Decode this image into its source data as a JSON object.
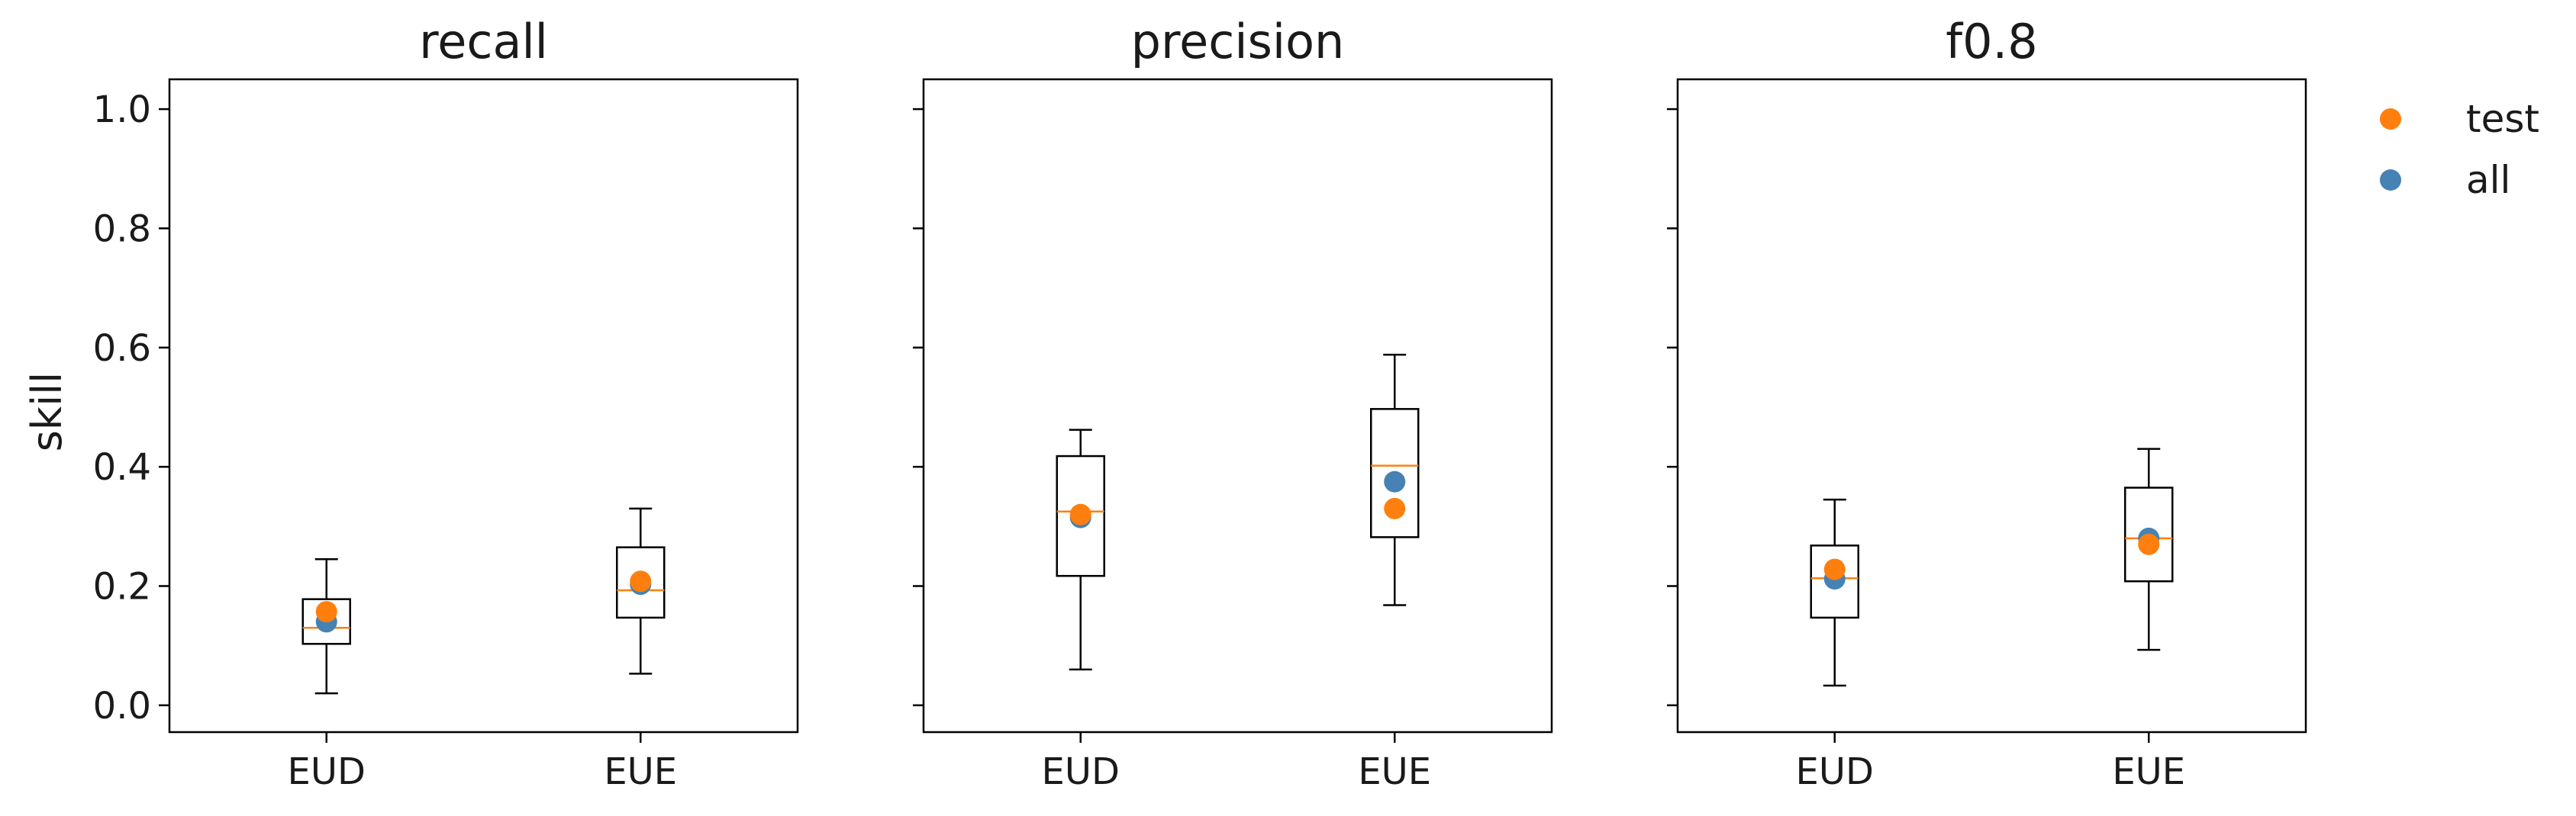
{
  "chart_data": {
    "type": "box",
    "ylabel": "skill",
    "ylim": [
      -0.045,
      1.05
    ],
    "yticks": [
      "0.0",
      "0.2",
      "0.4",
      "0.6",
      "0.8",
      "1.0"
    ],
    "categories": [
      "EUD",
      "EUE"
    ],
    "colors": {
      "test": "#ff7f0e",
      "all": "#4682b4",
      "median": "#ff7f0e",
      "box": "#000000"
    },
    "legend": {
      "placement": "right",
      "entries": [
        {
          "label": "test",
          "color": "#ff7f0e"
        },
        {
          "label": "all",
          "color": "#4682b4"
        }
      ]
    },
    "panels": [
      {
        "title": "recall",
        "boxes": [
          {
            "category": "EUD",
            "whisker_low": 0.02,
            "q1": 0.103,
            "median": 0.13,
            "q3": 0.178,
            "whisker_high": 0.245,
            "test": 0.157,
            "all": 0.14
          },
          {
            "category": "EUE",
            "whisker_low": 0.053,
            "q1": 0.147,
            "median": 0.193,
            "q3": 0.265,
            "whisker_high": 0.33,
            "test": 0.208,
            "all": 0.203
          }
        ]
      },
      {
        "title": "precision",
        "boxes": [
          {
            "category": "EUD",
            "whisker_low": 0.06,
            "q1": 0.217,
            "median": 0.325,
            "q3": 0.418,
            "whisker_high": 0.462,
            "test": 0.32,
            "all": 0.315
          },
          {
            "category": "EUE",
            "whisker_low": 0.168,
            "q1": 0.282,
            "median": 0.402,
            "q3": 0.497,
            "whisker_high": 0.588,
            "test": 0.33,
            "all": 0.375
          }
        ]
      },
      {
        "title": "f0.8",
        "boxes": [
          {
            "category": "EUD",
            "whisker_low": 0.033,
            "q1": 0.147,
            "median": 0.213,
            "q3": 0.268,
            "whisker_high": 0.345,
            "test": 0.228,
            "all": 0.212
          },
          {
            "category": "EUE",
            "whisker_low": 0.093,
            "q1": 0.208,
            "median": 0.28,
            "q3": 0.365,
            "whisker_high": 0.43,
            "test": 0.27,
            "all": 0.28
          }
        ]
      }
    ]
  }
}
